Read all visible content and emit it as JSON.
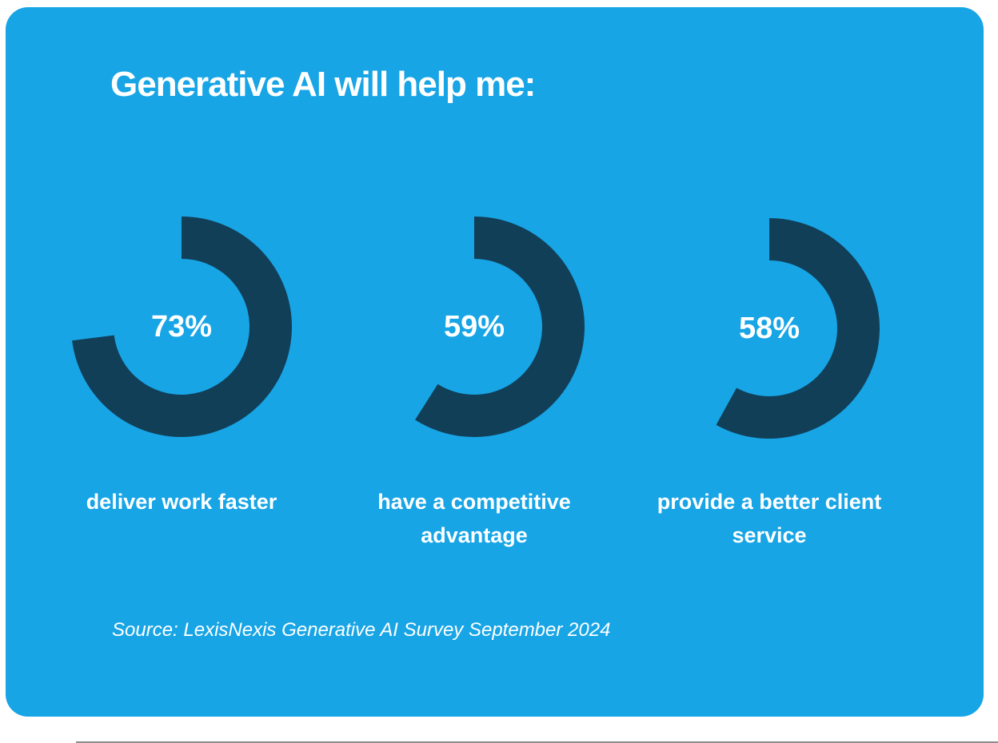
{
  "card": {
    "colors": {
      "page_background": "#ffffff",
      "card_background": "#17A5E6",
      "arc": "#123F58",
      "text": "#ffffff",
      "bottom_rule": "#8c8c8c"
    }
  },
  "chart_data": {
    "type": "pie",
    "variant": "donut-gauge-row",
    "title": "Generative AI will help me:",
    "source": "Source: LexisNexis Generative AI Survey September 2024",
    "legend_position": "none",
    "value_range": [
      0,
      100
    ],
    "arc_start": "top",
    "arc_direction": "clockwise",
    "series": [
      {
        "label": "deliver work faster",
        "value": 73,
        "display": "73%"
      },
      {
        "label": "have a competitive advantage",
        "value": 59,
        "display": "59%"
      },
      {
        "label": "provide a better client service",
        "value": 58,
        "display": "58%"
      }
    ]
  }
}
